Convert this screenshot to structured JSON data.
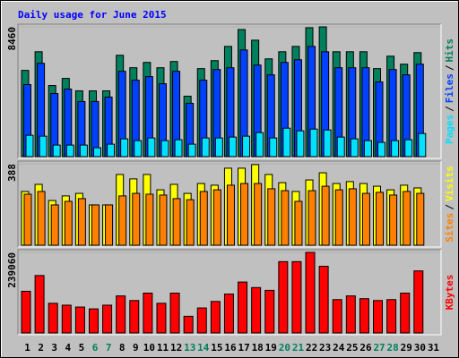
{
  "chart_data": {
    "type": "bar",
    "title": "Daily usage for June 2015",
    "categories": [
      "1",
      "2",
      "3",
      "4",
      "5",
      "6",
      "7",
      "8",
      "9",
      "10",
      "11",
      "12",
      "13",
      "14",
      "15",
      "16",
      "17",
      "18",
      "19",
      "20",
      "21",
      "22",
      "23",
      "24",
      "25",
      "26",
      "27",
      "28",
      "29",
      "30",
      "31"
    ],
    "category_colors": [
      "#000000",
      "#000000",
      "#000000",
      "#000000",
      "#000000",
      "#00805c",
      "#00805c",
      "#000000",
      "#000000",
      "#000000",
      "#000000",
      "#000000",
      "#00805c",
      "#00805c",
      "#000000",
      "#000000",
      "#000000",
      "#000000",
      "#000000",
      "#00805c",
      "#00805c",
      "#000000",
      "#000000",
      "#000000",
      "#000000",
      "#000000",
      "#00805c",
      "#00805c",
      "#000000",
      "#000000",
      "#000000"
    ],
    "legend_separator": "/",
    "panels": [
      {
        "ylim": [
          0,
          8460
        ],
        "yticks": [
          8460
        ],
        "series": [
          {
            "name": "Hits",
            "color": "#00805c",
            "values": [
              5621,
              6838,
              4636,
              5099,
              4288,
              4288,
              4288,
              6606,
              5795,
              6142,
              5795,
              6200,
              3940,
              5737,
              6258,
              7185,
              8286,
              7591,
              6374,
              6838,
              7185,
              8402,
              8460,
              6838,
              6838,
              6838,
              5737,
              6548,
              6026,
              6780,
              null
            ]
          },
          {
            "name": "Files",
            "color": "#0040ff",
            "values": [
              4694,
              6084,
              4114,
              4404,
              3593,
              3593,
              3882,
              5563,
              4983,
              5215,
              4752,
              5563,
              3477,
              4983,
              5679,
              5795,
              6954,
              5969,
              5331,
              6142,
              6316,
              7185,
              6838,
              5795,
              5795,
              5795,
              4868,
              5679,
              5331,
              6027,
              null
            ]
          },
          {
            "name": "Pages",
            "color": "#00e0ff",
            "values": [
              1391,
              1333,
              753,
              753,
              753,
              580,
              811,
              1159,
              1043,
              1217,
              1043,
              1101,
              811,
              1217,
              1217,
              1275,
              1333,
              1565,
              1217,
              1854,
              1681,
              1796,
              1739,
              1275,
              1159,
              1043,
              927,
              1043,
              1101,
              1507,
              null
            ]
          }
        ]
      },
      {
        "ylim": [
          0,
          388
        ],
        "yticks": [
          388
        ],
        "series": [
          {
            "name": "Visits",
            "color": "#ffff00",
            "values": [
              256,
              290,
              213,
              235,
              247,
              192,
              192,
              337,
              316,
              337,
              264,
              290,
              247,
              294,
              286,
              367,
              367,
              384,
              337,
              298,
              256,
              311,
              345,
              294,
              303,
              294,
              281,
              264,
              286,
              273,
              null
            ]
          },
          {
            "name": "Sites",
            "color": "#ff8000",
            "values": [
              243,
              256,
              192,
              209,
              222,
              192,
              192,
              235,
              247,
              243,
              239,
              222,
              217,
              256,
              264,
              286,
              294,
              294,
              269,
              260,
              209,
              260,
              281,
              264,
              269,
              247,
              252,
              239,
              256,
              247,
              null
            ]
          }
        ]
      },
      {
        "ylim": [
          0,
          239060
        ],
        "yticks": [
          239060
        ],
        "series": [
          {
            "name": "KBytes",
            "color": "#ff0000",
            "values": [
              123660,
              170376,
              87936,
              82440,
              76944,
              71448,
              82440,
              109920,
              96180,
              118164,
              87936,
              118164,
              49464,
              74196,
              93432,
              115416,
              151140,
              134652,
              126408,
              211596,
              211596,
              239060,
              197856,
              98928,
              109920,
              101676,
              96180,
              98928,
              118164,
              184116,
              null
            ]
          }
        ]
      }
    ]
  }
}
